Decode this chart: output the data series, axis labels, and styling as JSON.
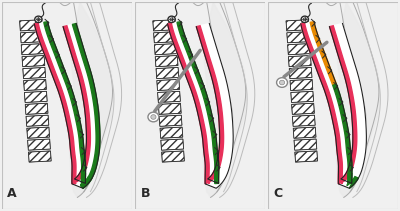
{
  "figure_bg": "#f0f0f0",
  "panel_bg": "#ffffff",
  "border_color": "#c0c0c0",
  "labels": [
    "A",
    "B",
    "C"
  ],
  "label_fontsize": 9,
  "colors": {
    "green": "#1a7a1a",
    "pink": "#e8305a",
    "orange": "#e88a00",
    "gray": "#888888",
    "dark": "#2a2a2a",
    "black": "#111111",
    "hatch_fg": "#333333",
    "hatch_bg": "#ffffff",
    "body_line": "#888888",
    "shadow_fill": "#e0e0e0",
    "light_gray": "#aaaaaa",
    "white": "#ffffff",
    "tube_outline": "#222222",
    "vert_fill": "#f8f8f8"
  }
}
